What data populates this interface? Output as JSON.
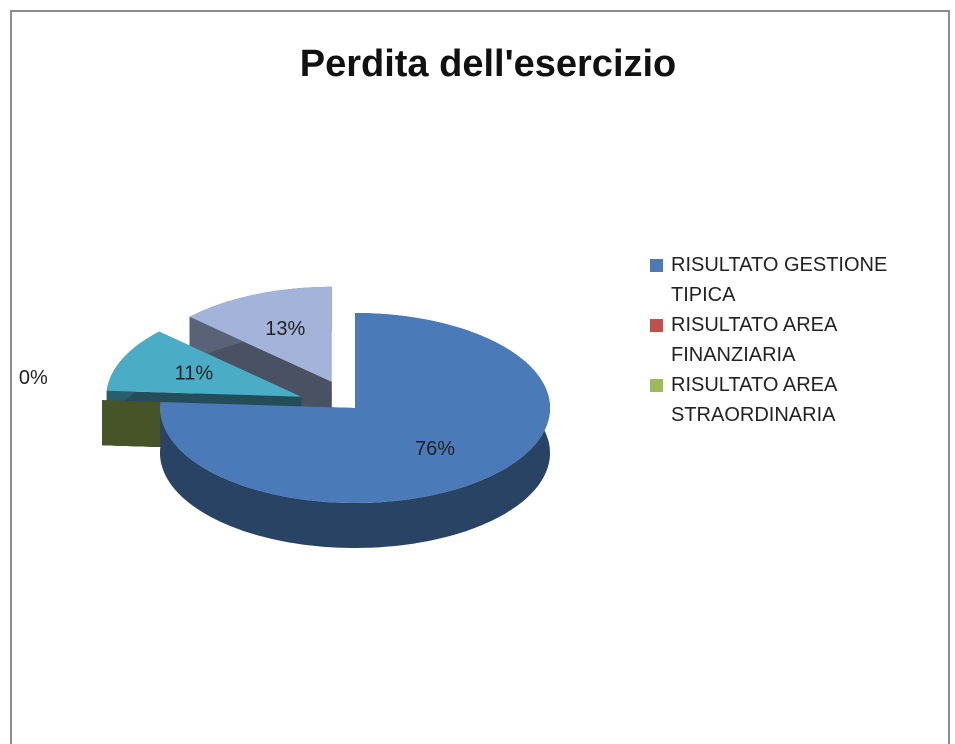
{
  "chart_data": {
    "type": "pie",
    "title": "Perdita dell'esercizio",
    "categories": [
      "RISULTATO GESTIONE TIPICA",
      "RISULTATO AREA FINANZIARIA",
      "RISULTATO AREA STRAORDINARIA",
      null,
      null
    ],
    "values": [
      76,
      0,
      0,
      11,
      13
    ],
    "value_labels": [
      "76%",
      null,
      "0%",
      "11%",
      "13%"
    ],
    "colors": [
      "#4a7ab8",
      "#c0504d",
      "#9bbb59",
      "#4bacc6",
      "#a3b3d9"
    ],
    "legend": "right"
  }
}
